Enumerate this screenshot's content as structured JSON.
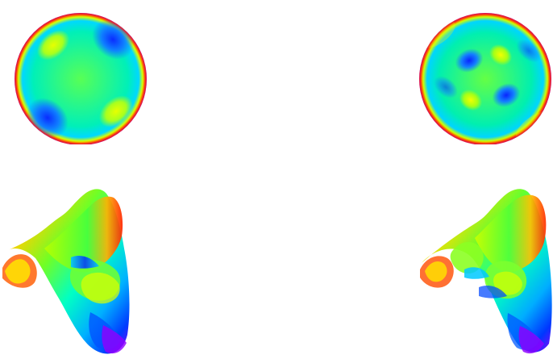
{
  "figure": {
    "panels": [
      {
        "id": "top-left",
        "kind": "disk-map",
        "mode": "lower"
      },
      {
        "id": "top-right",
        "kind": "disk-map",
        "mode": "higher"
      },
      {
        "id": "bottom-left",
        "kind": "surface",
        "mode": "lower"
      },
      {
        "id": "bottom-right",
        "kind": "surface",
        "mode": "higher"
      }
    ],
    "colormap": [
      "#7a00ff",
      "#0030ff",
      "#00b8ff",
      "#00ffd0",
      "#40ff40",
      "#d8ff00",
      "#ffb000",
      "#ff3000"
    ]
  }
}
